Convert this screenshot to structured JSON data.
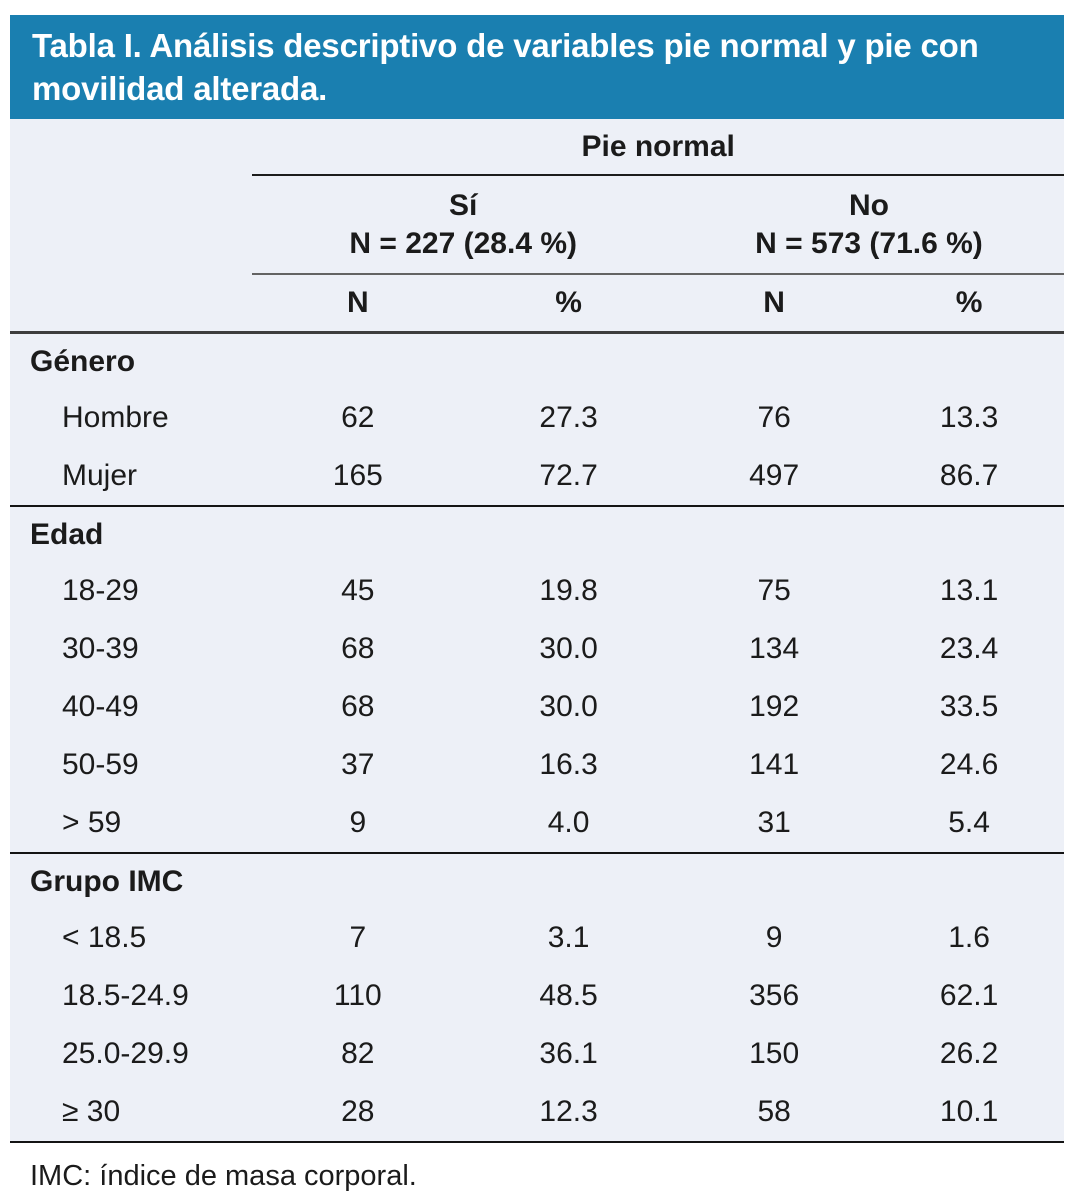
{
  "title": "Tabla I. Análisis descriptivo de variables pie normal y pie con movilidad alterada.",
  "header": {
    "group_label": "Pie normal",
    "col_groups": [
      {
        "label": "Sí",
        "sublabel": "N = 227 (28.4 %)"
      },
      {
        "label": "No",
        "sublabel": "N = 573 (71.6 %)"
      }
    ],
    "columns": [
      "N",
      "%",
      "N",
      "%"
    ]
  },
  "sections": [
    {
      "label": "Género",
      "rows": [
        {
          "label": "Hombre",
          "values": [
            "62",
            "27.3",
            "76",
            "13.3"
          ]
        },
        {
          "label": "Mujer",
          "values": [
            "165",
            "72.7",
            "497",
            "86.7"
          ]
        }
      ]
    },
    {
      "label": "Edad",
      "rows": [
        {
          "label": "18-29",
          "values": [
            "45",
            "19.8",
            "75",
            "13.1"
          ]
        },
        {
          "label": "30-39",
          "values": [
            "68",
            "30.0",
            "134",
            "23.4"
          ]
        },
        {
          "label": "40-49",
          "values": [
            "68",
            "30.0",
            "192",
            "33.5"
          ]
        },
        {
          "label": "50-59",
          "values": [
            "37",
            "16.3",
            "141",
            "24.6"
          ]
        },
        {
          "label": "> 59",
          "values": [
            "9",
            "4.0",
            "31",
            "5.4"
          ]
        }
      ]
    },
    {
      "label": "Grupo IMC",
      "rows": [
        {
          "label": "< 18.5",
          "values": [
            "7",
            "3.1",
            "9",
            "1.6"
          ]
        },
        {
          "label": "18.5-24.9",
          "values": [
            "110",
            "48.5",
            "356",
            "62.1"
          ]
        },
        {
          "label": "25.0-29.9",
          "values": [
            "82",
            "36.1",
            "150",
            "26.2"
          ]
        },
        {
          "label": "≥ 30",
          "values": [
            "28",
            "12.3",
            "58",
            "10.1"
          ]
        }
      ]
    }
  ],
  "footnote": "IMC: índice de masa corporal.",
  "colors": {
    "title_bar_bg": "#1a7fb0",
    "title_text": "#ffffff",
    "table_bg": "#edf0f7",
    "text": "#1b1b1b",
    "rule_dark": "#141414",
    "rule_gray": "#636363"
  }
}
